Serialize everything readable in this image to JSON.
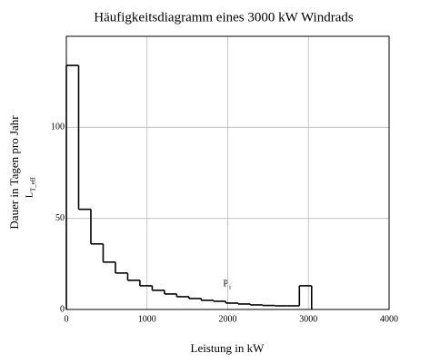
{
  "chart_data": {
    "type": "histogram",
    "title": "Häufigkeitsdiagramm eines 3000 kW Windrads",
    "x_label": "Leistung in kW",
    "y_label": "Dauer in Tagen pro Jahr",
    "x_var": "P",
    "x_var_sub": "i",
    "y_var": "L",
    "y_var_sub": "T_eff",
    "bins": [
      0,
      152,
      304,
      456,
      608,
      760,
      912,
      1064,
      1216,
      1368,
      1520,
      1672,
      1824,
      1976,
      2128,
      2280,
      2432,
      2584,
      2736,
      2888,
      3040
    ],
    "values": [
      134,
      55,
      36,
      26,
      20,
      16,
      13,
      10.5,
      8.5,
      7,
      6,
      5,
      4.5,
      3.5,
      3,
      2.5,
      2.2,
      2,
      2,
      13
    ],
    "color": "#000000",
    "xlim": [
      0,
      4000
    ],
    "xticks": [
      0,
      1000,
      2000,
      3000,
      4000
    ],
    "ylim": [
      0,
      150
    ],
    "yticks": [
      0,
      50,
      100
    ],
    "grid": true
  }
}
